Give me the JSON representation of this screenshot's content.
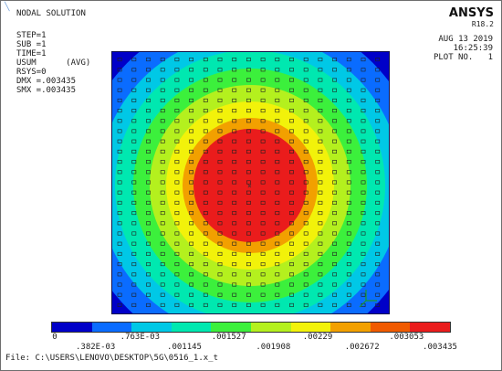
{
  "header": {
    "title": "NODAL SOLUTION",
    "step": "STEP=1",
    "sub": "SUB =1",
    "time": "TIME=1",
    "usum": "USUM      (AVG)",
    "rsys": "RSYS=0",
    "dmx": "DMX =.003435",
    "smx": "SMX =.003435"
  },
  "brand": {
    "name": "ANSYS",
    "version": "R18.2"
  },
  "right_info": {
    "date": "AUG 13 2019",
    "time": "16:25:39",
    "plot": "PLOT NO.   1"
  },
  "legend": {
    "colors": [
      "#0000c8",
      "#0a6cff",
      "#00c8e6",
      "#00e8b0",
      "#3cf03c",
      "#b4f01e",
      "#f2f20a",
      "#f2a000",
      "#f05a00",
      "#ea1c1c"
    ],
    "top_labels": [
      "0",
      ".763E-03",
      ".001527",
      ".00229",
      ".003053"
    ],
    "bottom_labels": [
      ".382E-03",
      ".001145",
      ".001908",
      ".002672",
      ".003435"
    ]
  },
  "contour": {
    "min": 0,
    "max": 0.003435,
    "levels": [
      0,
      0.000382,
      0.000763,
      0.001145,
      0.001527,
      0.001908,
      0.00229,
      0.002672,
      0.003053,
      0.003435
    ]
  },
  "footer": {
    "file": "File: C:\\USERS\\LENOVO\\DESKTOP\\5G\\0516_1.x_t"
  }
}
